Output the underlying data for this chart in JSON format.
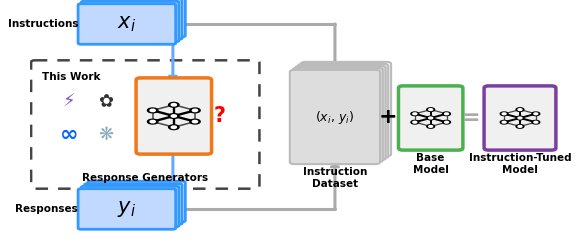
{
  "bg_color": "#ffffff",
  "blue_border": "#3399FF",
  "orange_border": "#F07818",
  "green_border": "#4CAF50",
  "purple_border": "#7B3FA0",
  "gray_card_border": "#BBBBBB",
  "dashed_border": "#444444",
  "box_bg": "#F0F0F0",
  "white_bg": "#FFFFFF",
  "blue_card_bg": "#C8DEFF",
  "gray_card_bg": "#DDDDDD",
  "arrow_gray": "#AAAAAA",
  "arrow_blue": "#66AAFF",
  "instructions_label": "Instructions",
  "responses_label": "Responses",
  "this_work_label": "This Work",
  "response_gen_label": "Response Generators",
  "instruction_dataset_label": "Instruction\nDataset",
  "base_model_label": "Base\nModel",
  "it_model_label": "Instruction-Tuned\nModel",
  "font_size_label": 7.5,
  "font_size_math": 15,
  "font_size_small_math": 9
}
